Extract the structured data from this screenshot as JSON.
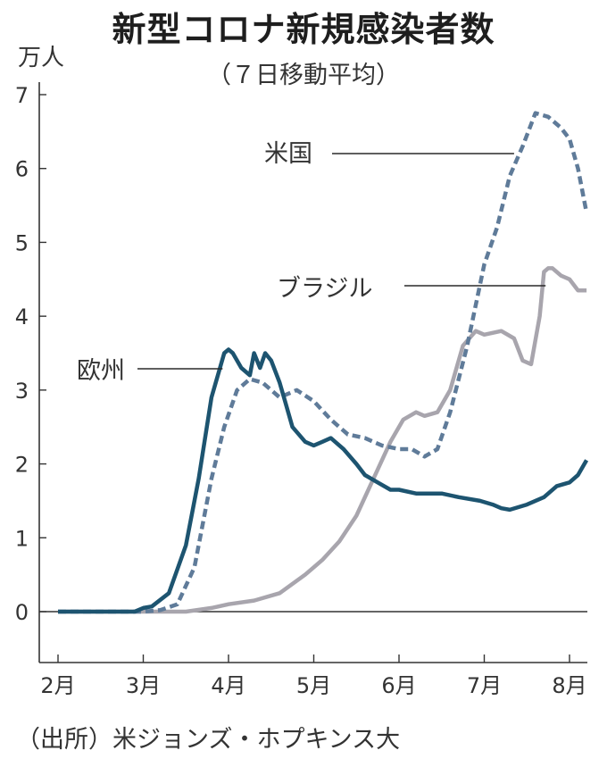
{
  "chart_data": {
    "type": "line",
    "title": "新型コロナ新規感染者数",
    "subtitle": "（７日移動平均）",
    "ylabel": "万人",
    "source": "（出所）米ジョンズ・ホプキンス大",
    "ylim": [
      0,
      7
    ],
    "yticks": [
      "0",
      "1",
      "2",
      "3",
      "4",
      "5",
      "6",
      "7"
    ],
    "categories": [
      "2月",
      "3月",
      "4月",
      "5月",
      "6月",
      "7月",
      "8月"
    ],
    "xlim": [
      0,
      6.4
    ],
    "grid": false,
    "series": [
      {
        "name": "欧州",
        "color": "#1d5470",
        "style": "solid",
        "x": [
          0,
          0.5,
          0.9,
          1.0,
          1.1,
          1.3,
          1.5,
          1.65,
          1.8,
          1.95,
          2.0,
          2.05,
          2.15,
          2.25,
          2.3,
          2.37,
          2.43,
          2.5,
          2.6,
          2.65,
          2.75,
          2.9,
          3.0,
          3.1,
          3.2,
          3.35,
          3.5,
          3.6,
          3.75,
          3.9,
          4.0,
          4.2,
          4.5,
          4.7,
          4.95,
          5.1,
          5.2,
          5.3,
          5.5,
          5.7,
          5.85,
          6.0,
          6.1,
          6.2
        ],
        "y": [
          0,
          0,
          0,
          0.05,
          0.07,
          0.25,
          0.9,
          1.8,
          2.9,
          3.5,
          3.55,
          3.5,
          3.3,
          3.2,
          3.5,
          3.3,
          3.5,
          3.4,
          3.1,
          2.9,
          2.5,
          2.3,
          2.25,
          2.3,
          2.35,
          2.2,
          2.0,
          1.85,
          1.75,
          1.65,
          1.65,
          1.6,
          1.6,
          1.55,
          1.5,
          1.45,
          1.4,
          1.38,
          1.45,
          1.55,
          1.7,
          1.75,
          1.85,
          2.05
        ]
      },
      {
        "name": "米国",
        "color": "#5f7b99",
        "style": "dashed",
        "x": [
          0,
          1.0,
          1.2,
          1.4,
          1.6,
          1.8,
          1.95,
          2.1,
          2.25,
          2.4,
          2.6,
          2.8,
          3.0,
          3.2,
          3.4,
          3.6,
          3.8,
          4.0,
          4.15,
          4.3,
          4.45,
          4.6,
          4.8,
          5.0,
          5.15,
          5.3,
          5.45,
          5.6,
          5.75,
          5.9,
          6.0,
          6.1,
          6.2
        ],
        "y": [
          0,
          0,
          0.02,
          0.1,
          0.6,
          1.8,
          2.5,
          3.0,
          3.15,
          3.1,
          2.9,
          3.0,
          2.85,
          2.6,
          2.4,
          2.35,
          2.25,
          2.2,
          2.2,
          2.1,
          2.2,
          2.7,
          3.6,
          4.7,
          5.2,
          5.9,
          6.3,
          6.75,
          6.7,
          6.55,
          6.4,
          6.0,
          5.4
        ]
      },
      {
        "name": "ブラジル",
        "color": "#a8a5ad",
        "style": "solid",
        "x": [
          0,
          1.5,
          1.8,
          2.0,
          2.3,
          2.6,
          2.9,
          3.1,
          3.3,
          3.5,
          3.7,
          3.9,
          4.05,
          4.2,
          4.3,
          4.45,
          4.6,
          4.75,
          4.9,
          5.0,
          5.2,
          5.35,
          5.45,
          5.55,
          5.65,
          5.7,
          5.75,
          5.8,
          5.9,
          6.0,
          6.1,
          6.2
        ],
        "y": [
          0,
          0,
          0.05,
          0.1,
          0.15,
          0.25,
          0.5,
          0.7,
          0.95,
          1.3,
          1.8,
          2.3,
          2.6,
          2.7,
          2.65,
          2.7,
          3.0,
          3.6,
          3.8,
          3.75,
          3.8,
          3.7,
          3.4,
          3.35,
          4.0,
          4.6,
          4.65,
          4.65,
          4.55,
          4.5,
          4.35,
          4.35
        ]
      }
    ],
    "annotations": [
      "米国",
      "ブラジル",
      "欧州"
    ]
  }
}
